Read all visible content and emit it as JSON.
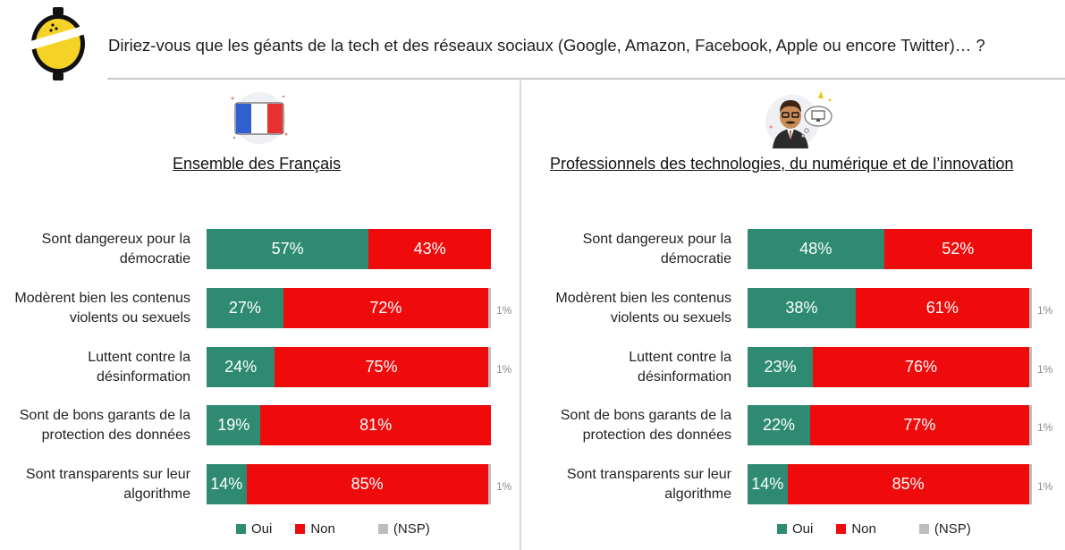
{
  "header": {
    "question_lead": "Diriez",
    "question_rest": "-vous que les géants de la tech et des réseaux sociaux (Google, Amazon, Facebook, Apple ou encore Twitter)… ?"
  },
  "colors": {
    "oui": "#2e8b72",
    "non": "#ef0b0b",
    "nsp": "#bdbdbd",
    "logo_yellow": "#f5d326"
  },
  "icons": {
    "left_panel": "france-flag-icon",
    "right_panel": "tech-professional-icon",
    "brand": "logo-icon"
  },
  "legend": [
    "Oui",
    "Non",
    "(NSP)"
  ],
  "chart_data": [
    {
      "type": "bar",
      "stacked": true,
      "orientation": "horizontal",
      "title": "Ensemble des Français",
      "categories": [
        "Sont dangereux pour la démocratie",
        "Modèrent bien les contenus violents ou sexuels",
        "Luttent contre la désinformation",
        "Sont de bons garants de la protection des données",
        "Sont transparents sur leur algorithme"
      ],
      "series": [
        {
          "name": "Oui",
          "values": [
            57,
            27,
            24,
            19,
            14
          ]
        },
        {
          "name": "Non",
          "values": [
            43,
            72,
            75,
            81,
            85
          ]
        },
        {
          "name": "(NSP)",
          "values": [
            0,
            1,
            1,
            0,
            1
          ]
        }
      ],
      "legend_position": "bottom"
    },
    {
      "type": "bar",
      "stacked": true,
      "orientation": "horizontal",
      "title": "Professionnels des technologies, du numérique et de l’innovation",
      "categories": [
        "Sont dangereux pour la démocratie",
        "Modèrent bien les contenus violents ou sexuels",
        "Luttent contre la désinformation",
        "Sont de bons garants de la protection des données",
        "Sont transparents sur leur algorithme"
      ],
      "series": [
        {
          "name": "Oui",
          "values": [
            48,
            38,
            23,
            22,
            14
          ]
        },
        {
          "name": "Non",
          "values": [
            52,
            61,
            76,
            77,
            85
          ]
        },
        {
          "name": "(NSP)",
          "values": [
            0,
            1,
            1,
            1,
            1
          ]
        }
      ],
      "legend_position": "bottom"
    }
  ]
}
